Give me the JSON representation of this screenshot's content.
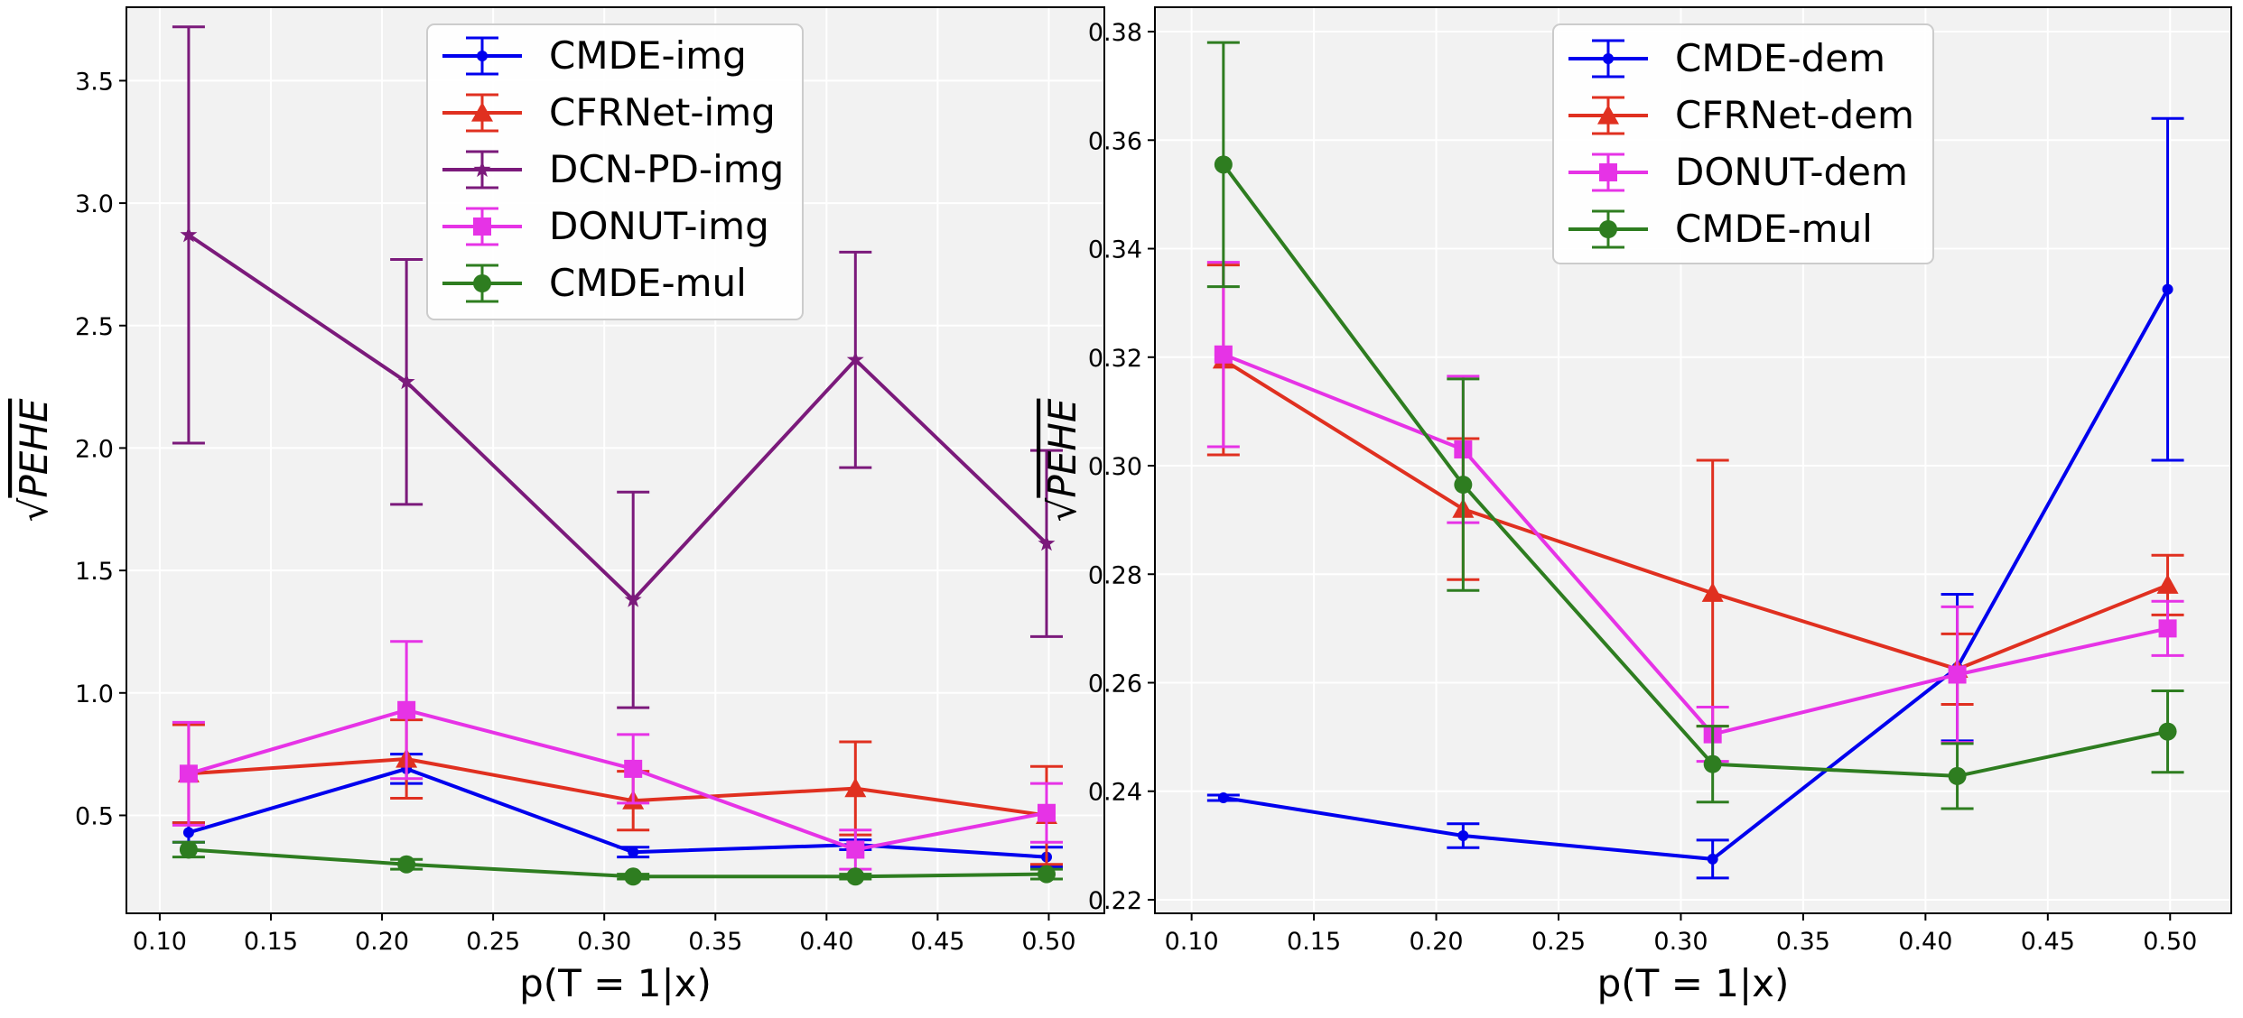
{
  "chart_data": [
    {
      "type": "line",
      "title": "",
      "xlabel": "p(T = 1|x)",
      "ylabel_radical": "√",
      "ylabel": "PEHE",
      "xlim": [
        0.085,
        0.525
      ],
      "ylim": [
        0.1,
        3.8
      ],
      "xticks": [
        0.1,
        0.15,
        0.2,
        0.25,
        0.3,
        0.35,
        0.4,
        0.45,
        0.5
      ],
      "xtick_labels": [
        "0.10",
        "0.15",
        "0.20",
        "0.25",
        "0.30",
        "0.35",
        "0.40",
        "0.45",
        "0.50"
      ],
      "yticks": [
        0.5,
        1.0,
        1.5,
        2.0,
        2.5,
        3.0,
        3.5
      ],
      "ytick_labels": [
        "0.5",
        "1.0",
        "1.5",
        "2.0",
        "2.5",
        "3.0",
        "3.5"
      ],
      "grid": true,
      "legend_position": "top-center",
      "x": [
        0.113,
        0.211,
        0.313,
        0.413,
        0.499
      ],
      "series": [
        {
          "name": "CMDE-img",
          "color": "#0000ee",
          "marker": "dot",
          "values": [
            0.43,
            0.69,
            0.35,
            0.38,
            0.33
          ],
          "err": [
            0.04,
            0.06,
            0.02,
            0.02,
            0.04
          ]
        },
        {
          "name": "CFRNet-img",
          "color": "#e03020",
          "marker": "triangle",
          "values": [
            0.67,
            0.73,
            0.56,
            0.61,
            0.5
          ],
          "err": [
            0.2,
            0.16,
            0.12,
            0.19,
            0.2
          ]
        },
        {
          "name": "DCN-PD-img",
          "color": "#7b1a7b",
          "marker": "star",
          "values": [
            2.87,
            2.27,
            1.38,
            2.36,
            1.61
          ],
          "err": [
            0.85,
            0.5,
            0.44,
            0.44,
            0.38
          ]
        },
        {
          "name": "DONUT-img",
          "color": "#e633e6",
          "marker": "square",
          "values": [
            0.67,
            0.93,
            0.69,
            0.36,
            0.51
          ],
          "err": [
            0.21,
            0.28,
            0.14,
            0.08,
            0.12
          ]
        },
        {
          "name": "CMDE-mul",
          "color": "#2e7d20",
          "marker": "circle",
          "values": [
            0.36,
            0.3,
            0.25,
            0.25,
            0.26
          ],
          "err": [
            0.03,
            0.02,
            0.01,
            0.01,
            0.02
          ]
        }
      ]
    },
    {
      "type": "line",
      "title": "",
      "xlabel": "p(T = 1|x)",
      "ylabel_radical": "√",
      "ylabel": "PEHE",
      "xlim": [
        0.085,
        0.525
      ],
      "ylim": [
        0.2175,
        0.3845
      ],
      "xticks": [
        0.1,
        0.15,
        0.2,
        0.25,
        0.3,
        0.35,
        0.4,
        0.45,
        0.5
      ],
      "xtick_labels": [
        "0.10",
        "0.15",
        "0.20",
        "0.25",
        "0.30",
        "0.35",
        "0.40",
        "0.45",
        "0.50"
      ],
      "yticks": [
        0.22,
        0.24,
        0.26,
        0.28,
        0.3,
        0.32,
        0.34,
        0.36,
        0.38
      ],
      "ytick_labels": [
        "0.22",
        "0.24",
        "0.26",
        "0.28",
        "0.30",
        "0.32",
        "0.34",
        "0.36",
        "0.38"
      ],
      "grid": true,
      "legend_position": "top-center",
      "x": [
        0.113,
        0.211,
        0.313,
        0.413,
        0.499
      ],
      "series": [
        {
          "name": "CMDE-dem",
          "color": "#0000ee",
          "marker": "dot",
          "values": [
            0.2388,
            0.2318,
            0.2275,
            0.2628,
            0.3325
          ],
          "err": [
            0.0005,
            0.0022,
            0.0035,
            0.0135,
            0.0315
          ]
        },
        {
          "name": "CFRNet-dem",
          "color": "#e03020",
          "marker": "triangle",
          "values": [
            0.3195,
            0.292,
            0.2765,
            0.2625,
            0.278
          ],
          "err": [
            0.0175,
            0.013,
            0.0245,
            0.0065,
            0.0055
          ]
        },
        {
          "name": "DONUT-dem",
          "color": "#e633e6",
          "marker": "square",
          "values": [
            0.3205,
            0.303,
            0.2505,
            0.2615,
            0.27
          ],
          "err": [
            0.017,
            0.0135,
            0.005,
            0.0125,
            0.005
          ]
        },
        {
          "name": "CMDE-mul",
          "color": "#2e7d20",
          "marker": "circle",
          "values": [
            0.3555,
            0.2965,
            0.245,
            0.2428,
            0.251
          ],
          "err": [
            0.0225,
            0.0195,
            0.007,
            0.006,
            0.0075
          ]
        }
      ]
    }
  ]
}
